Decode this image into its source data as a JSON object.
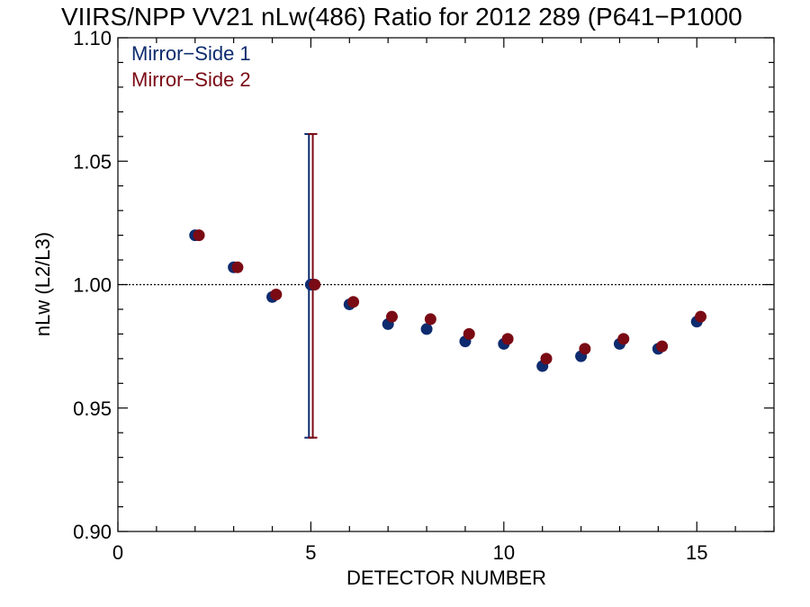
{
  "chart_data": {
    "type": "scatter",
    "title": "VIIRS/NPP VV21 nLw(486) Ratio for 2012 289 (P641−P1000",
    "xlabel": "DETECTOR NUMBER",
    "ylabel": "nLw (L2/L3)",
    "xlim": [
      0,
      17
    ],
    "ylim": [
      0.9,
      1.1
    ],
    "x_ticks": [
      0,
      5,
      10,
      15
    ],
    "x_tick_labels": [
      "0",
      "5",
      "10",
      "15"
    ],
    "y_ticks": [
      0.9,
      0.95,
      1.0,
      1.05,
      1.1
    ],
    "y_tick_labels": [
      "0.90",
      "0.95",
      "1.00",
      "1.05",
      "1.10"
    ],
    "reference_line": 1.0,
    "legend_position": "top-left",
    "series": [
      {
        "name": "Mirror−Side 1",
        "color": "#0d2b6e",
        "x": [
          2,
          3,
          4,
          5,
          6,
          7,
          8,
          9,
          10,
          11,
          12,
          13,
          14,
          15
        ],
        "y": [
          1.02,
          1.007,
          0.995,
          1.0,
          0.992,
          0.984,
          0.982,
          0.977,
          0.976,
          0.967,
          0.971,
          0.976,
          0.974,
          0.985
        ],
        "error_bar": {
          "x": 5,
          "low": 0.938,
          "high": 1.061
        }
      },
      {
        "name": "Mirror−Side 2",
        "color": "#7a0a14",
        "x": [
          2,
          3,
          4,
          5,
          6,
          7,
          8,
          9,
          10,
          11,
          12,
          13,
          14,
          15
        ],
        "y": [
          1.02,
          1.007,
          0.996,
          1.0,
          0.993,
          0.987,
          0.986,
          0.98,
          0.978,
          0.97,
          0.974,
          0.978,
          0.975,
          0.987
        ],
        "error_bar": {
          "x": 5,
          "low": 0.938,
          "high": 1.061
        }
      }
    ]
  }
}
